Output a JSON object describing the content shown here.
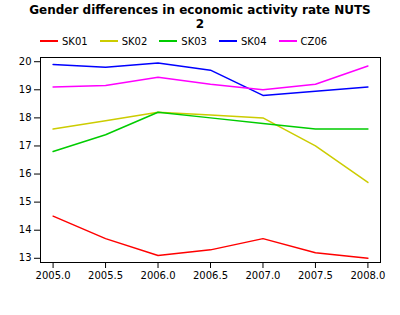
{
  "chart_data": {
    "type": "line",
    "title": "Gender differences in economic activity rate NUTS\n2",
    "x": [
      2005,
      2005.5,
      2006,
      2006.5,
      2007,
      2007.5,
      2008
    ],
    "series": [
      {
        "name": "SK01",
        "color": "#FF0000",
        "values": [
          14.5,
          13.7,
          13.1,
          13.3,
          13.7,
          13.2,
          13.0
        ]
      },
      {
        "name": "SK02",
        "color": "#CCCC00",
        "values": [
          17.6,
          17.9,
          18.2,
          18.1,
          18.0,
          17.0,
          15.7
        ]
      },
      {
        "name": "SK03",
        "color": "#00CC00",
        "values": [
          16.8,
          17.4,
          18.2,
          18.0,
          17.8,
          17.6,
          17.6
        ]
      },
      {
        "name": "SK04",
        "color": "#0000FF",
        "values": [
          19.9,
          19.8,
          19.95,
          19.7,
          18.8,
          18.95,
          19.1
        ]
      },
      {
        "name": "CZ06",
        "color": "#FF00FF",
        "values": [
          19.1,
          19.15,
          19.45,
          19.2,
          19.0,
          19.2,
          19.85
        ]
      }
    ],
    "xlim": [
      2004.88,
      2008.12
    ],
    "ylim": [
      12.85,
      20.15
    ],
    "xticks": [
      {
        "value": 2005.0,
        "label": "2005.0"
      },
      {
        "value": 2005.5,
        "label": "2005.5"
      },
      {
        "value": 2006.0,
        "label": "2006.0"
      },
      {
        "value": 2006.5,
        "label": "2006.5"
      },
      {
        "value": 2007.0,
        "label": "2007.0"
      },
      {
        "value": 2007.5,
        "label": "2007.5"
      },
      {
        "value": 2008.0,
        "label": "2008.0"
      }
    ],
    "yticks": [
      13,
      14,
      15,
      16,
      17,
      18,
      19,
      20
    ],
    "legend": "upper left",
    "grid": false
  }
}
